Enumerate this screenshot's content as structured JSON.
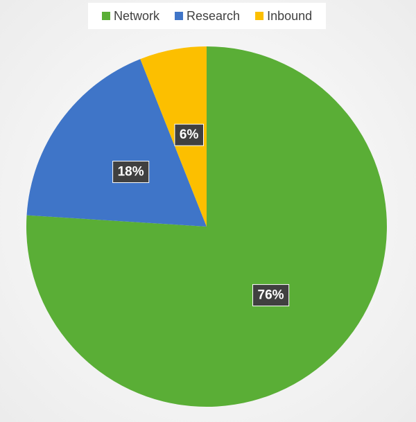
{
  "chart_data": {
    "type": "pie",
    "categories": [
      "Network",
      "Research",
      "Inbound"
    ],
    "values": [
      76,
      18,
      6
    ],
    "value_labels": [
      "76%",
      "18%",
      "6%"
    ],
    "colors": [
      "#5aae36",
      "#3f75c8",
      "#fcbf00"
    ],
    "legend": "top"
  }
}
